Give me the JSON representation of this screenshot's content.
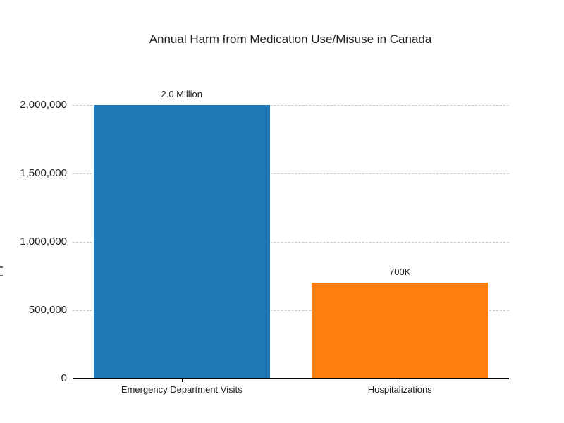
{
  "chart_data": {
    "type": "bar",
    "title": "Annual Harm from Medication Use/Misuse in Canada",
    "categories": [
      "Emergency Department Visits",
      "Hospitalizations"
    ],
    "values": [
      2000000,
      700000
    ],
    "bar_labels": [
      "2.0 Million",
      "700K"
    ],
    "bar_colors": [
      "#1f77b4",
      "#ff7f0e"
    ],
    "xlabel": "",
    "ylabel": "",
    "ylim": [
      0,
      2000000
    ],
    "yticks": [
      0,
      500000,
      1000000,
      1500000,
      2000000
    ],
    "ytick_labels": [
      "0",
      "500,000",
      "1,000,000",
      "1,500,000",
      "2,000,000"
    ],
    "grid": "horizontal dashed",
    "legend": "none"
  },
  "colors": {
    "background": "#ffffff",
    "text": "#212121",
    "gridline": "#c9c9c9",
    "axis_line": "#000000",
    "bar_blue": "#1f77b4",
    "bar_orange": "#ff7f0e"
  }
}
